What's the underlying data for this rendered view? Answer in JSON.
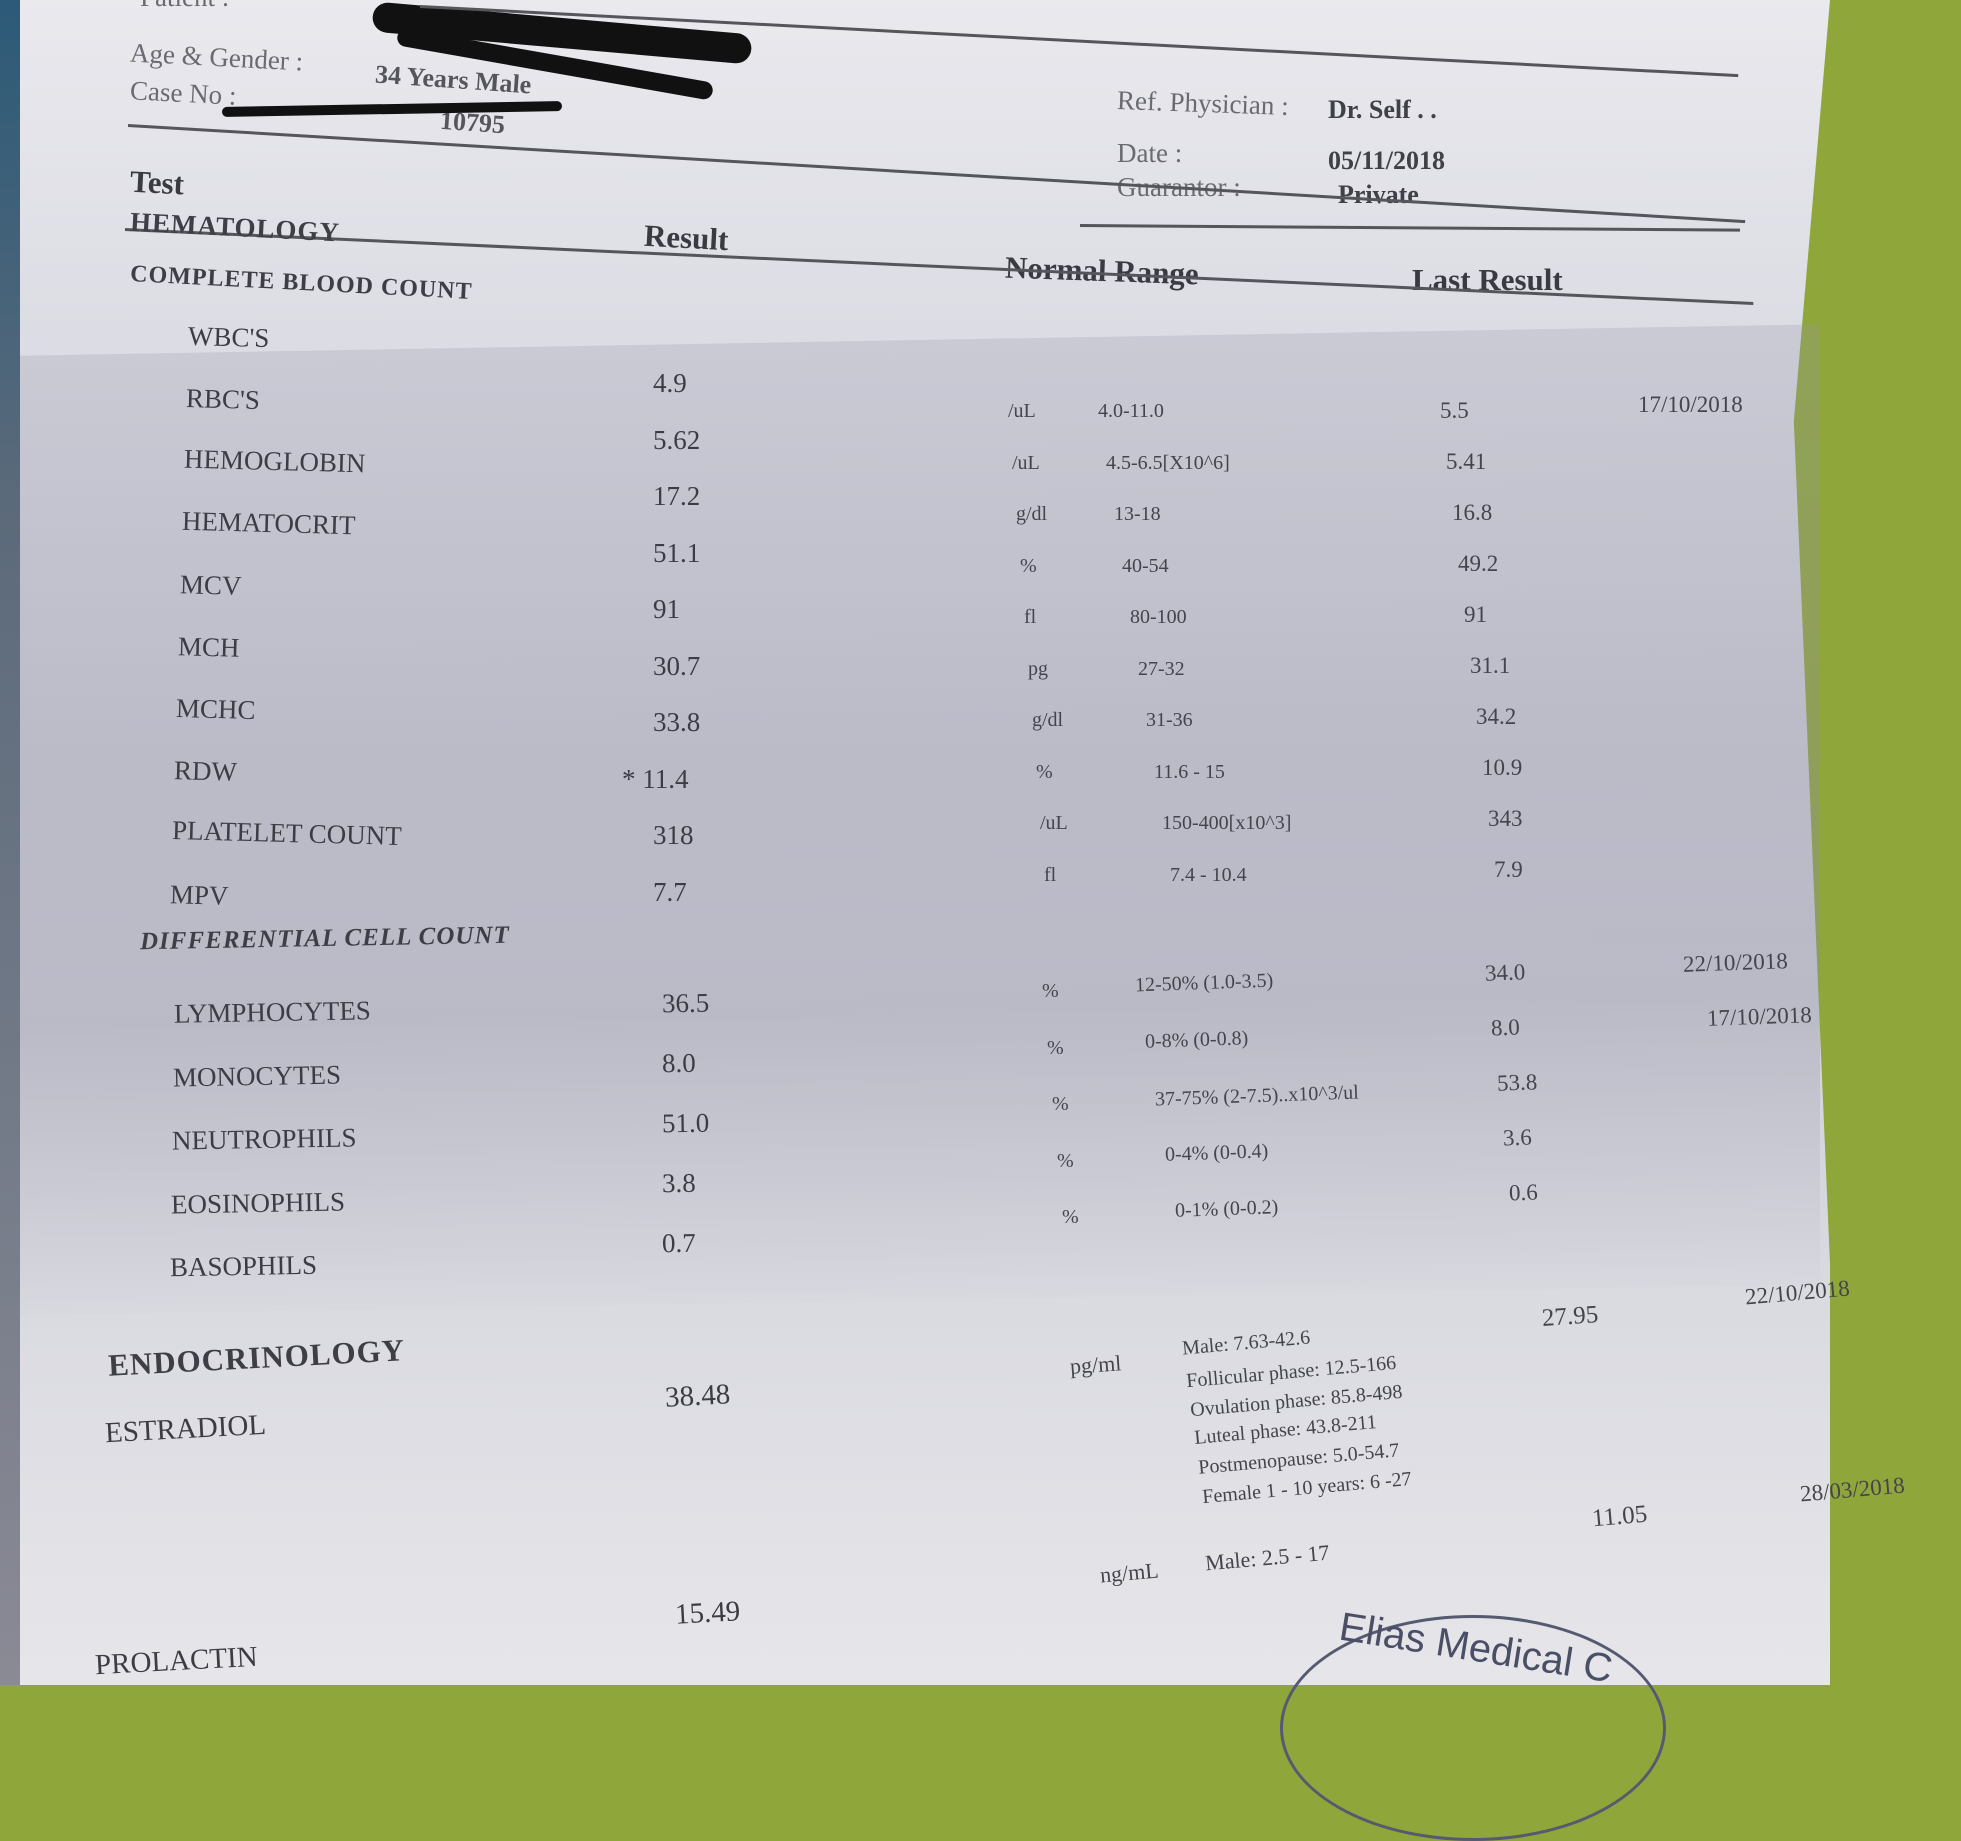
{
  "header": {
    "patient_label": "Patient :",
    "age_gender_label": "Age & Gender :",
    "age_gender_value": "34 Years Male",
    "case_no_label": "Case No :",
    "case_no_value": "10795",
    "ref_physician_label": "Ref. Physician :",
    "ref_physician_value": "Dr. Self . .",
    "date_label": "Date :",
    "date_value": "05/11/2018",
    "guarantor_label": "Guarantor :",
    "guarantor_value": "Private"
  },
  "columns": {
    "test": "Test",
    "result": "Result",
    "normal_range": "Normal Range",
    "last_result": "Last Result"
  },
  "hematology": {
    "title": "HEMATOLOGY",
    "cbc_title": "COMPLETE BLOOD COUNT",
    "cbc_rows": [
      {
        "name": "WBC'S",
        "result": "4.9",
        "unit": "/uL",
        "range": "4.0-11.0",
        "last": "5.5",
        "last_date": "17/10/2018"
      },
      {
        "name": "RBC'S",
        "result": "5.62",
        "unit": "/uL",
        "range": "4.5-6.5[X10^6]",
        "last": "5.41",
        "last_date": ""
      },
      {
        "name": "HEMOGLOBIN",
        "result": "17.2",
        "unit": "g/dl",
        "range": "13-18",
        "last": "16.8",
        "last_date": ""
      },
      {
        "name": "HEMATOCRIT",
        "result": "51.1",
        "unit": "%",
        "range": "40-54",
        "last": "49.2",
        "last_date": ""
      },
      {
        "name": "MCV",
        "result": "91",
        "unit": "fl",
        "range": "80-100",
        "last": "91",
        "last_date": ""
      },
      {
        "name": "MCH",
        "result": "30.7",
        "unit": "pg",
        "range": "27-32",
        "last": "31.1",
        "last_date": ""
      },
      {
        "name": "MCHC",
        "result": "33.8",
        "unit": "g/dl",
        "range": "31-36",
        "last": "34.2",
        "last_date": ""
      },
      {
        "name": "RDW",
        "result": "* 11.4",
        "unit": "%",
        "range": "11.6 - 15",
        "last": "10.9",
        "last_date": ""
      },
      {
        "name": "PLATELET COUNT",
        "result": "318",
        "unit": "/uL",
        "range": "150-400[x10^3]",
        "last": "343",
        "last_date": ""
      },
      {
        "name": "MPV",
        "result": "7.7",
        "unit": "fl",
        "range": "7.4 - 10.4",
        "last": "7.9",
        "last_date": ""
      }
    ],
    "diff_title": "DIFFERENTIAL CELL COUNT",
    "diff_rows": [
      {
        "name": "LYMPHOCYTES",
        "result": "36.5",
        "unit": "%",
        "range": "12-50% (1.0-3.5)",
        "last": "34.0",
        "last_date": "22/10/2018"
      },
      {
        "name": "MONOCYTES",
        "result": "8.0",
        "unit": "%",
        "range": "0-8% (0-0.8)",
        "last": "8.0",
        "last_date": ""
      },
      {
        "name": "NEUTROPHILS",
        "result": "51.0",
        "unit": "%",
        "range": "37-75% (2-7.5)..x10^3/ul",
        "last": "53.8",
        "last_date": "17/10/2018"
      },
      {
        "name": "EOSINOPHILS",
        "result": "3.8",
        "unit": "%",
        "range": "0-4% (0-0.4)",
        "last": "3.6",
        "last_date": ""
      },
      {
        "name": "BASOPHILS",
        "result": "0.7",
        "unit": "%",
        "range": "0-1% (0-0.2)",
        "last": "0.6",
        "last_date": ""
      }
    ]
  },
  "endocrinology": {
    "title": "ENDOCRINOLOGY",
    "estradiol": {
      "name": "ESTRADIOL",
      "result": "38.48",
      "unit": "pg/ml",
      "ranges": [
        "Male: 7.63-42.6",
        "Follicular phase: 12.5-166",
        "Ovulation phase: 85.8-498",
        "Luteal phase: 43.8-211",
        "Postmenopause: 5.0-54.7",
        "Female 1 - 10 years: 6 -27"
      ],
      "last": "27.95",
      "last_date": "22/10/2018"
    },
    "prolactin": {
      "name": "PROLACTIN",
      "result": "15.49",
      "unit": "ng/mL",
      "range": "Male: 2.5 - 17",
      "last": "11.05",
      "last_date": "28/03/2018"
    }
  },
  "stamp": {
    "text": "Elias Medical C"
  }
}
